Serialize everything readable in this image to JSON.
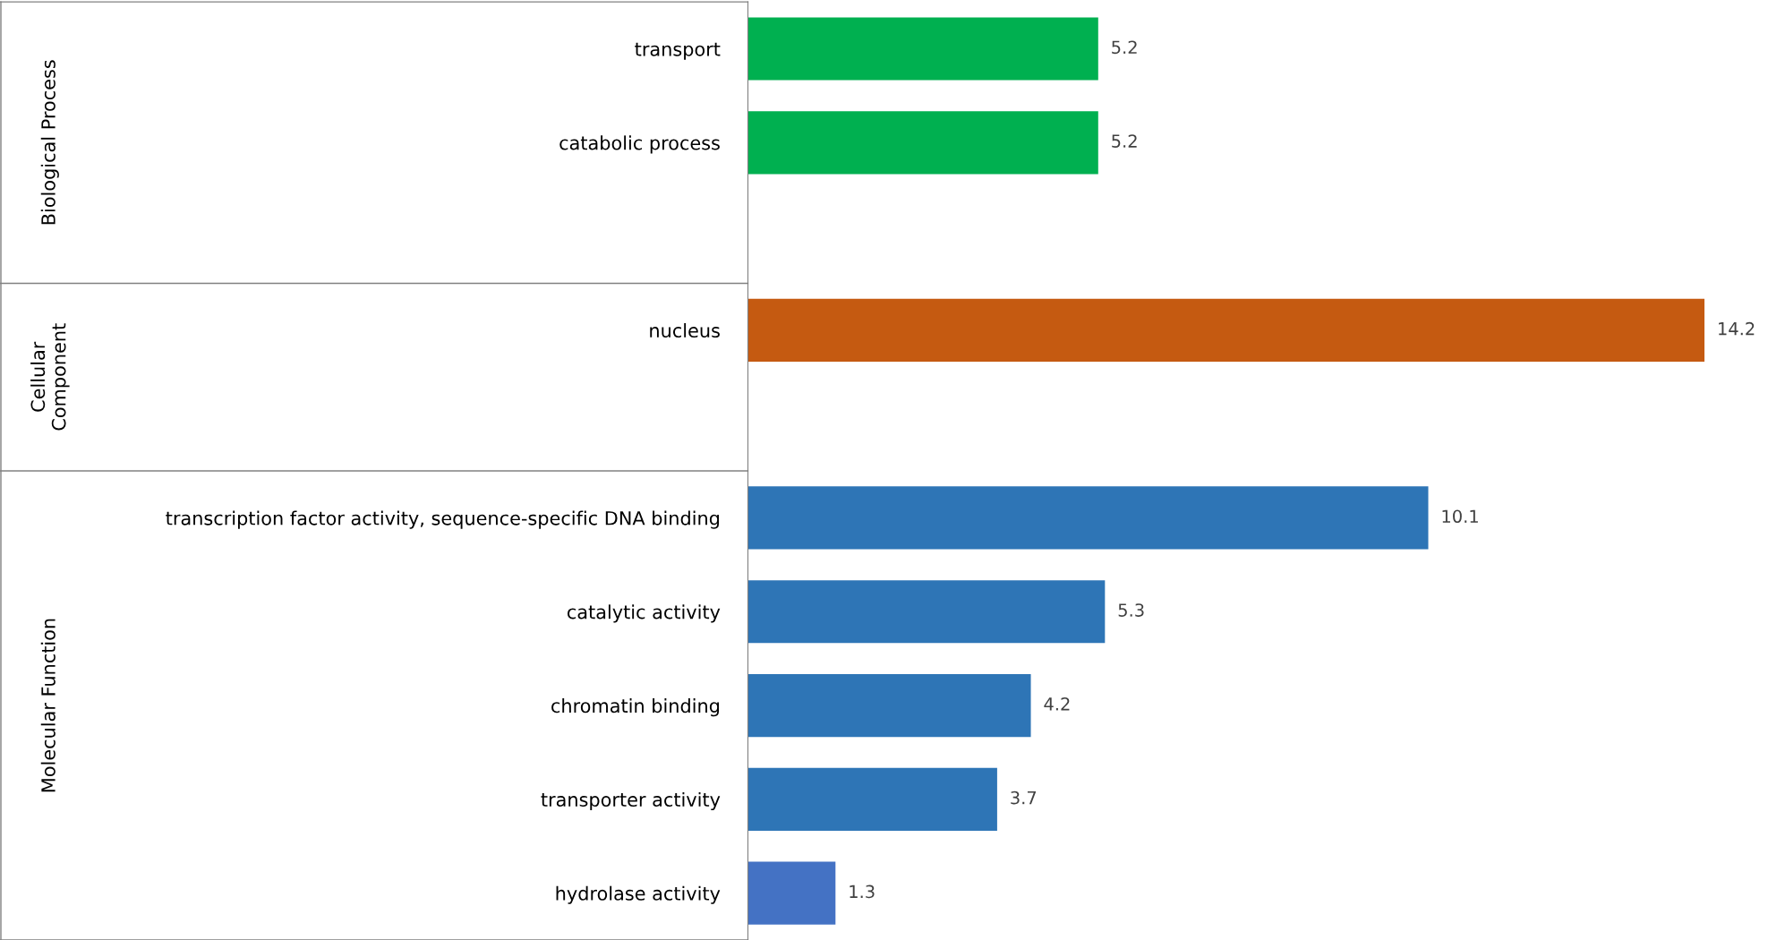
{
  "chart_data": {
    "type": "bar",
    "orientation": "horizontal",
    "categories": [
      "transport",
      "catabolic process",
      null,
      "nucleus",
      null,
      "transcription factor activity, sequence-specific DNA binding",
      "catalytic activity",
      "chromatin binding",
      "transporter activity",
      "hydrolase activity"
    ],
    "values": [
      5.2,
      5.2,
      null,
      14.2,
      null,
      10.1,
      5.3,
      4.2,
      3.7,
      1.3
    ],
    "colors": [
      "#00b050",
      "#00b050",
      null,
      "#c55a11",
      null,
      "#2e75b6",
      "#2e75b6",
      "#2e75b6",
      "#2e75b6",
      "#4472c4"
    ],
    "annotations": [
      "Biological Process",
      "Cellular\nComponent",
      "Molecular Function"
    ],
    "data_labels": true,
    "grid": false,
    "legend": false
  }
}
